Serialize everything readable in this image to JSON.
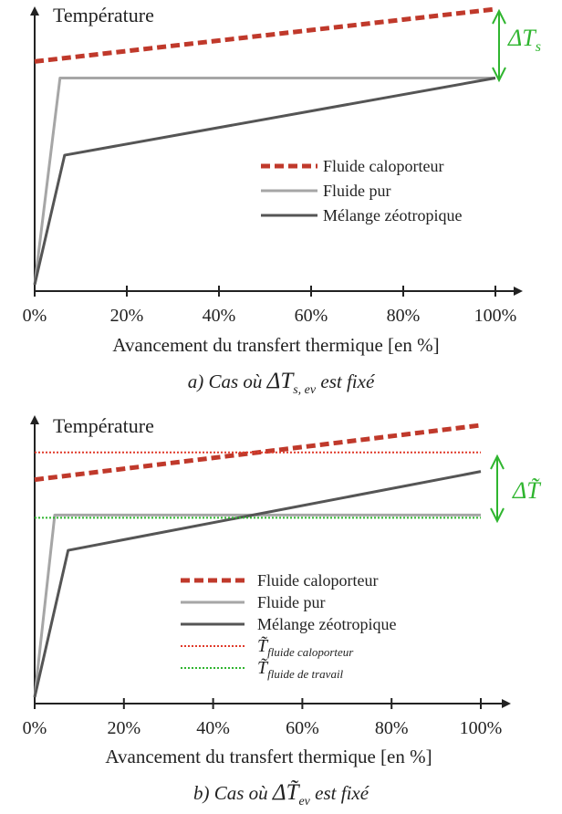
{
  "chart_data": [
    {
      "type": "line",
      "ylabel": "Température",
      "xlabel": "Avancement du transfert thermique [en %]",
      "x_tick_labels": [
        "0%",
        "20%",
        "40%",
        "60%",
        "80%",
        "100%"
      ],
      "xlim": [
        0,
        100
      ],
      "ylim": [
        0,
        100
      ],
      "grid": false,
      "legend_placement": "center-right",
      "caption": {
        "prefix": "a) Cas où ",
        "symbol": "ΔT",
        "subscript": "s, ev",
        "suffix": " est fixé"
      },
      "annotation": {
        "symbol": "ΔT",
        "subscript": "s",
        "color": "#2fb52f"
      },
      "series": [
        {
          "name": "Fluide caloporteur",
          "style": "dashed",
          "color": "#c0392b",
          "x": [
            0,
            100
          ],
          "y": [
            81,
            100
          ]
        },
        {
          "name": "Fluide pur",
          "style": "solid",
          "color": "#a6a6a6",
          "x": [
            0,
            5.5,
            100
          ],
          "y": [
            0,
            75,
            75
          ]
        },
        {
          "name": "Mélange zéotropique",
          "style": "solid",
          "color": "#555555",
          "x": [
            0,
            6.5,
            100
          ],
          "y": [
            0,
            47,
            75
          ]
        }
      ]
    },
    {
      "type": "line",
      "ylabel": "Température",
      "xlabel": "Avancement du transfert thermique [en %]",
      "x_tick_labels": [
        "0%",
        "20%",
        "40%",
        "60%",
        "80%",
        "100%"
      ],
      "xlim": [
        0,
        100
      ],
      "ylim": [
        0,
        100
      ],
      "grid": false,
      "legend_placement": "bottom-center",
      "caption": {
        "prefix": "b) Cas où ",
        "symbol": "ΔT̃",
        "subscript": "ev",
        "suffix": " est fixé"
      },
      "annotation": {
        "symbol": "ΔT̃",
        "subscript": "",
        "color": "#2fb52f"
      },
      "series": [
        {
          "name": "Fluide caloporteur",
          "style": "dashed",
          "color": "#c0392b",
          "x": [
            0,
            100
          ],
          "y": [
            80,
            100
          ]
        },
        {
          "name": "Fluide pur",
          "style": "solid",
          "color": "#a6a6a6",
          "x": [
            0,
            4.5,
            100
          ],
          "y": [
            0,
            67,
            67
          ]
        },
        {
          "name": "Mélange zéotropique",
          "style": "solid",
          "color": "#555555",
          "x": [
            0,
            7.5,
            100
          ],
          "y": [
            0,
            54,
            83
          ]
        },
        {
          "name": "T̃",
          "name_sub": "fluide caloporteur",
          "style": "dotted",
          "color": "#e03a2a",
          "x": [
            0,
            100
          ],
          "y": [
            90,
            90
          ]
        },
        {
          "name": "T̃",
          "name_sub": "fluide de travail",
          "style": "dotted",
          "color": "#2fb52f",
          "x": [
            0,
            100
          ],
          "y": [
            66,
            66
          ]
        }
      ]
    }
  ]
}
